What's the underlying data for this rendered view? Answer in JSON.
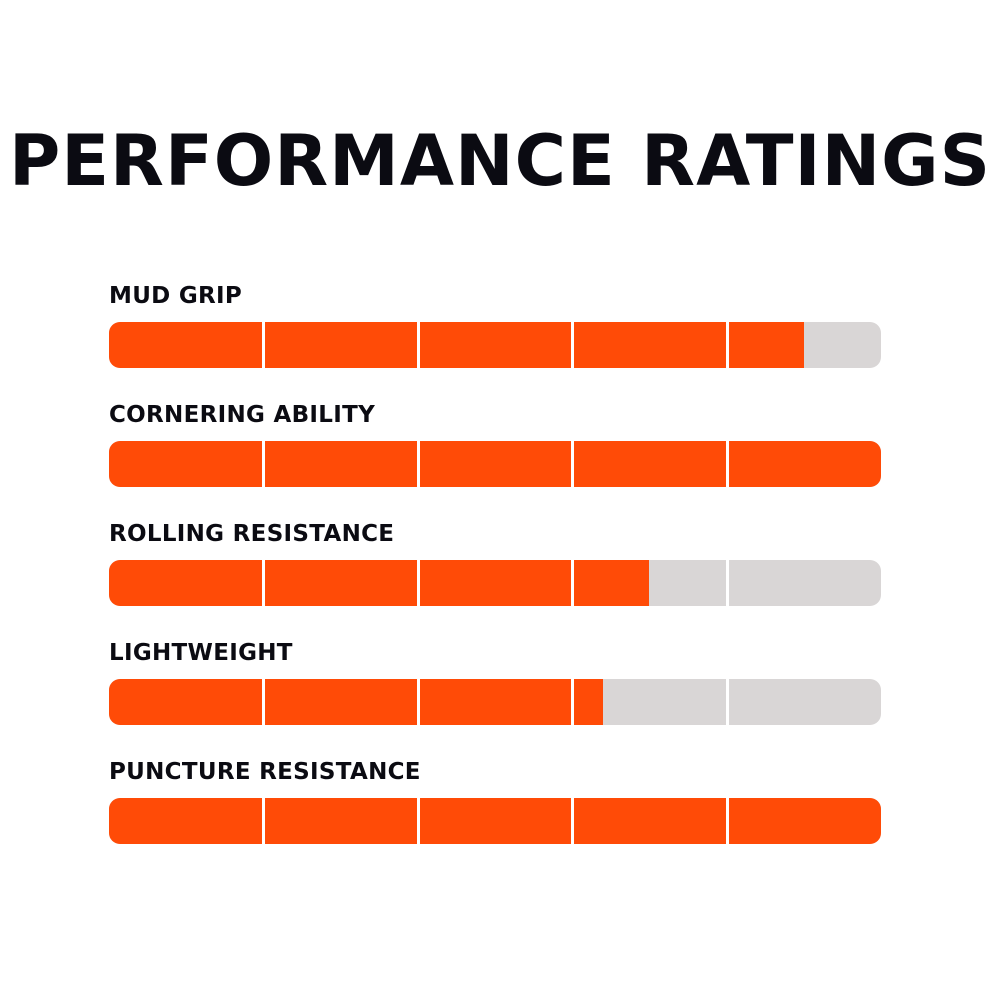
{
  "colors": {
    "fill": "#ff4b07",
    "track": "#d9d6d6",
    "divider": "#ffffff",
    "text": "#0b0b12"
  },
  "chart_data": {
    "type": "bar",
    "title": "PERFORMANCE RATINGS",
    "categories": [
      "MUD GRIP",
      "CORNERING ABILITY",
      "ROLLING RESISTANCE",
      "LIGHTWEIGHT",
      "PUNCTURE RESISTANCE"
    ],
    "values": [
      4.5,
      5,
      3.5,
      3.2,
      5
    ],
    "scale_max": 5,
    "segments": 5
  }
}
